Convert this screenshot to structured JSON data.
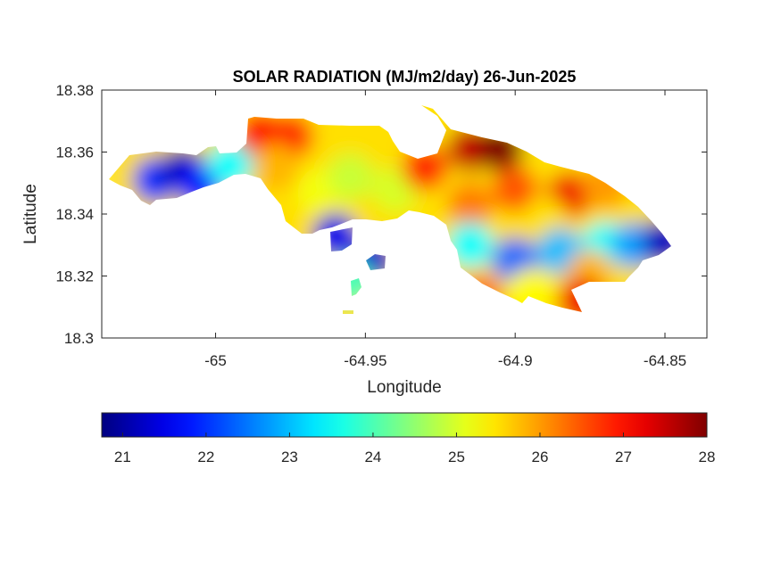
{
  "chart_data": {
    "type": "heatmap",
    "title": "SOLAR RADIATION (MJ/m2/day) 26-Jun-2025",
    "xlabel": "Longitude",
    "ylabel": "Latitude",
    "xlim": [
      -65.038,
      -64.836
    ],
    "ylim": [
      18.3,
      18.38
    ],
    "xticks": [
      -65,
      -64.95,
      -64.9,
      -64.85
    ],
    "xtick_labels": [
      "-65",
      "-64.95",
      "-64.9",
      "-64.85"
    ],
    "yticks": [
      18.3,
      18.32,
      18.34,
      18.36,
      18.38
    ],
    "ytick_labels": [
      "18.3",
      "18.32",
      "18.34",
      "18.36",
      "18.38"
    ],
    "grid": false,
    "colorbar": {
      "orientation": "horizontal",
      "position": "bottom",
      "colormap": "jet",
      "range": [
        20.75,
        28
      ],
      "ticks": [
        21,
        22,
        23,
        24,
        25,
        26,
        27,
        28
      ],
      "tick_labels": [
        "21",
        "22",
        "23",
        "24",
        "25",
        "26",
        "27",
        "28"
      ]
    },
    "field_samples": [
      {
        "lon": -65.02,
        "lat": 18.351,
        "value": 22.0
      },
      {
        "lon": -65.011,
        "lat": 18.354,
        "value": 21.2
      },
      {
        "lon": -65.005,
        "lat": 18.349,
        "value": 21.8
      },
      {
        "lon": -64.995,
        "lat": 18.356,
        "value": 23.5
      },
      {
        "lon": -64.985,
        "lat": 18.366,
        "value": 27.0
      },
      {
        "lon": -64.975,
        "lat": 18.365,
        "value": 26.8
      },
      {
        "lon": -64.98,
        "lat": 18.355,
        "value": 25.8
      },
      {
        "lon": -64.965,
        "lat": 18.347,
        "value": 25.2
      },
      {
        "lon": -64.955,
        "lat": 18.352,
        "value": 24.9
      },
      {
        "lon": -64.94,
        "lat": 18.348,
        "value": 25.0
      },
      {
        "lon": -64.96,
        "lat": 18.337,
        "value": 25.4
      },
      {
        "lon": -64.96,
        "lat": 18.333,
        "value": 21.5
      },
      {
        "lon": -64.948,
        "lat": 18.325,
        "value": 21.3
      },
      {
        "lon": -64.955,
        "lat": 18.318,
        "value": 24.0
      },
      {
        "lon": -64.93,
        "lat": 18.355,
        "value": 26.8
      },
      {
        "lon": -64.915,
        "lat": 18.361,
        "value": 27.5
      },
      {
        "lon": -64.905,
        "lat": 18.361,
        "value": 28.0
      },
      {
        "lon": -64.9,
        "lat": 18.348,
        "value": 26.5
      },
      {
        "lon": -64.915,
        "lat": 18.343,
        "value": 26.2
      },
      {
        "lon": -64.882,
        "lat": 18.346,
        "value": 27.2
      },
      {
        "lon": -64.87,
        "lat": 18.349,
        "value": 26.0
      },
      {
        "lon": -64.89,
        "lat": 18.338,
        "value": 25.5
      },
      {
        "lon": -64.915,
        "lat": 18.33,
        "value": 23.5
      },
      {
        "lon": -64.9,
        "lat": 18.325,
        "value": 22.4
      },
      {
        "lon": -64.885,
        "lat": 18.328,
        "value": 23.0
      },
      {
        "lon": -64.87,
        "lat": 18.33,
        "value": 23.5
      },
      {
        "lon": -64.86,
        "lat": 18.33,
        "value": 22.8
      },
      {
        "lon": -64.85,
        "lat": 18.331,
        "value": 21.2
      },
      {
        "lon": -64.875,
        "lat": 18.321,
        "value": 25.8
      },
      {
        "lon": -64.895,
        "lat": 18.315,
        "value": 25.3
      },
      {
        "lon": -64.878,
        "lat": 18.312,
        "value": 27.2
      },
      {
        "lon": -64.912,
        "lat": 18.313,
        "value": 26.3
      }
    ]
  }
}
